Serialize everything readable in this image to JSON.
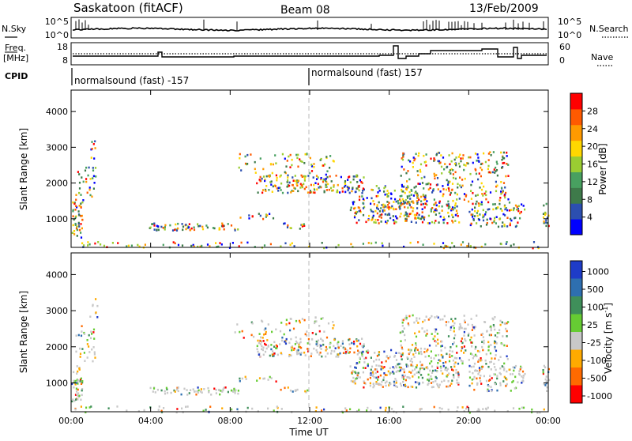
{
  "header": {
    "station": "Saskatoon (fitACF)",
    "beam": "Beam 08",
    "date": "13/Feb/2009"
  },
  "top_panels": {
    "nsky_label": "N.Sky",
    "nsearch_label": "N.Search",
    "nsky_ticks": [
      "10^5",
      "10^0"
    ],
    "nsearch_ticks": [
      "10^5",
      "10^0"
    ],
    "freq_label_1": "Freq.",
    "freq_label_2": "[MHz]",
    "freq_ticks": [
      "18",
      "8"
    ],
    "nave_label": "Nave",
    "nave_ticks": [
      "60",
      "0"
    ],
    "cpid_label": "CPID",
    "cpid_segments": [
      {
        "label": "normalsound (fast) -157",
        "start_hour": 0,
        "end_hour": 12
      },
      {
        "label": "normalsound (fast) 157",
        "start_hour": 12,
        "end_hour": 24
      }
    ]
  },
  "chart_data": [
    {
      "type": "heatmap",
      "title": "",
      "quantity": "Power",
      "xlabel": "",
      "ylabel": "Slant Range [km]",
      "xlim": [
        0,
        24
      ],
      "ylim": [
        200,
        4600
      ],
      "x_tick_labels": [
        "00:00",
        "04:00",
        "08:00",
        "12:00",
        "16:00",
        "20:00",
        "00:00"
      ],
      "y_ticks": [
        1000,
        2000,
        3000,
        4000
      ],
      "colorbar": {
        "label": "Power [dB]",
        "range": [
          0,
          32
        ],
        "ticks": [
          4,
          8,
          12,
          16,
          20,
          24,
          28
        ],
        "colors": [
          "#0000ff",
          "#2c4fb0",
          "#3e7a4a",
          "#48a060",
          "#9acd32",
          "#ffd700",
          "#ff9a00",
          "#ff5a00",
          "#ff0000"
        ]
      }
    },
    {
      "type": "heatmap",
      "title": "",
      "quantity": "Velocity",
      "xlabel": "Time UT",
      "ylabel": "Slant Range [km]",
      "xlim": [
        0,
        24
      ],
      "ylim": [
        200,
        4600
      ],
      "x_tick_labels": [
        "00:00",
        "04:00",
        "08:00",
        "12:00",
        "16:00",
        "20:00",
        "00:00"
      ],
      "y_ticks": [
        1000,
        2000,
        3000,
        4000
      ],
      "colorbar": {
        "label": "Velocity [m s^-1]",
        "tick_labels": [
          "1000",
          "500",
          "100",
          "25",
          "-25",
          "-100",
          "-500",
          "-1000"
        ],
        "colors": [
          "#1e3cc8",
          "#2e6fb0",
          "#3f8f5a",
          "#66cc33",
          "#c8c8c8",
          "#ffaa00",
          "#ff6a00",
          "#ff0000"
        ]
      }
    }
  ]
}
